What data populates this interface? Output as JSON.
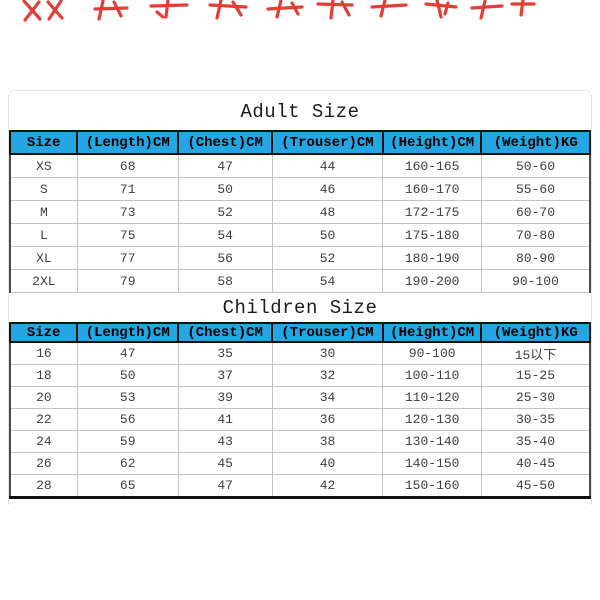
{
  "decoration": {
    "description": "red cropped character strokes along top edge",
    "color": "#e1342b"
  },
  "colors": {
    "header_bg": "#24a6e3",
    "header_text": "#000000",
    "cell_text": "#3e3e3e",
    "grid_line": "#c3c3c3",
    "table_edge": "#4a4a4a",
    "frame_border": "#e5e5e5",
    "title_color": "#1c1c1c"
  },
  "chart_data": [
    {
      "type": "table",
      "title": "Adult Size",
      "columns": [
        "Size",
        "(Length)CM",
        "(Chest)CM",
        "(Trouser)CM",
        "(Height)CM",
        "(Weight)KG"
      ],
      "rows": [
        [
          "XS",
          "68",
          "47",
          "44",
          "160-165",
          "50-60"
        ],
        [
          "S",
          "71",
          "50",
          "46",
          "160-170",
          "55-60"
        ],
        [
          "M",
          "73",
          "52",
          "48",
          "172-175",
          "60-70"
        ],
        [
          "L",
          "75",
          "54",
          "50",
          "175-180",
          "70-80"
        ],
        [
          "XL",
          "77",
          "56",
          "52",
          "180-190",
          "80-90"
        ],
        [
          "2XL",
          "79",
          "58",
          "54",
          "190-200",
          "90-100"
        ]
      ]
    },
    {
      "type": "table",
      "title": "Children Size",
      "columns": [
        "Size",
        "(Length)CM",
        "(Chest)CM",
        "(Trouser)CM",
        "(Height)CM",
        "(Weight)KG"
      ],
      "rows": [
        [
          "16",
          "47",
          "35",
          "30",
          "90-100",
          "15以下"
        ],
        [
          "18",
          "50",
          "37",
          "32",
          "100-110",
          "15-25"
        ],
        [
          "20",
          "53",
          "39",
          "34",
          "110-120",
          "25-30"
        ],
        [
          "22",
          "56",
          "41",
          "36",
          "120-130",
          "30-35"
        ],
        [
          "24",
          "59",
          "43",
          "38",
          "130-140",
          "35-40"
        ],
        [
          "26",
          "62",
          "45",
          "40",
          "140-150",
          "40-45"
        ],
        [
          "28",
          "65",
          "47",
          "42",
          "150-160",
          "45-50"
        ]
      ]
    }
  ]
}
